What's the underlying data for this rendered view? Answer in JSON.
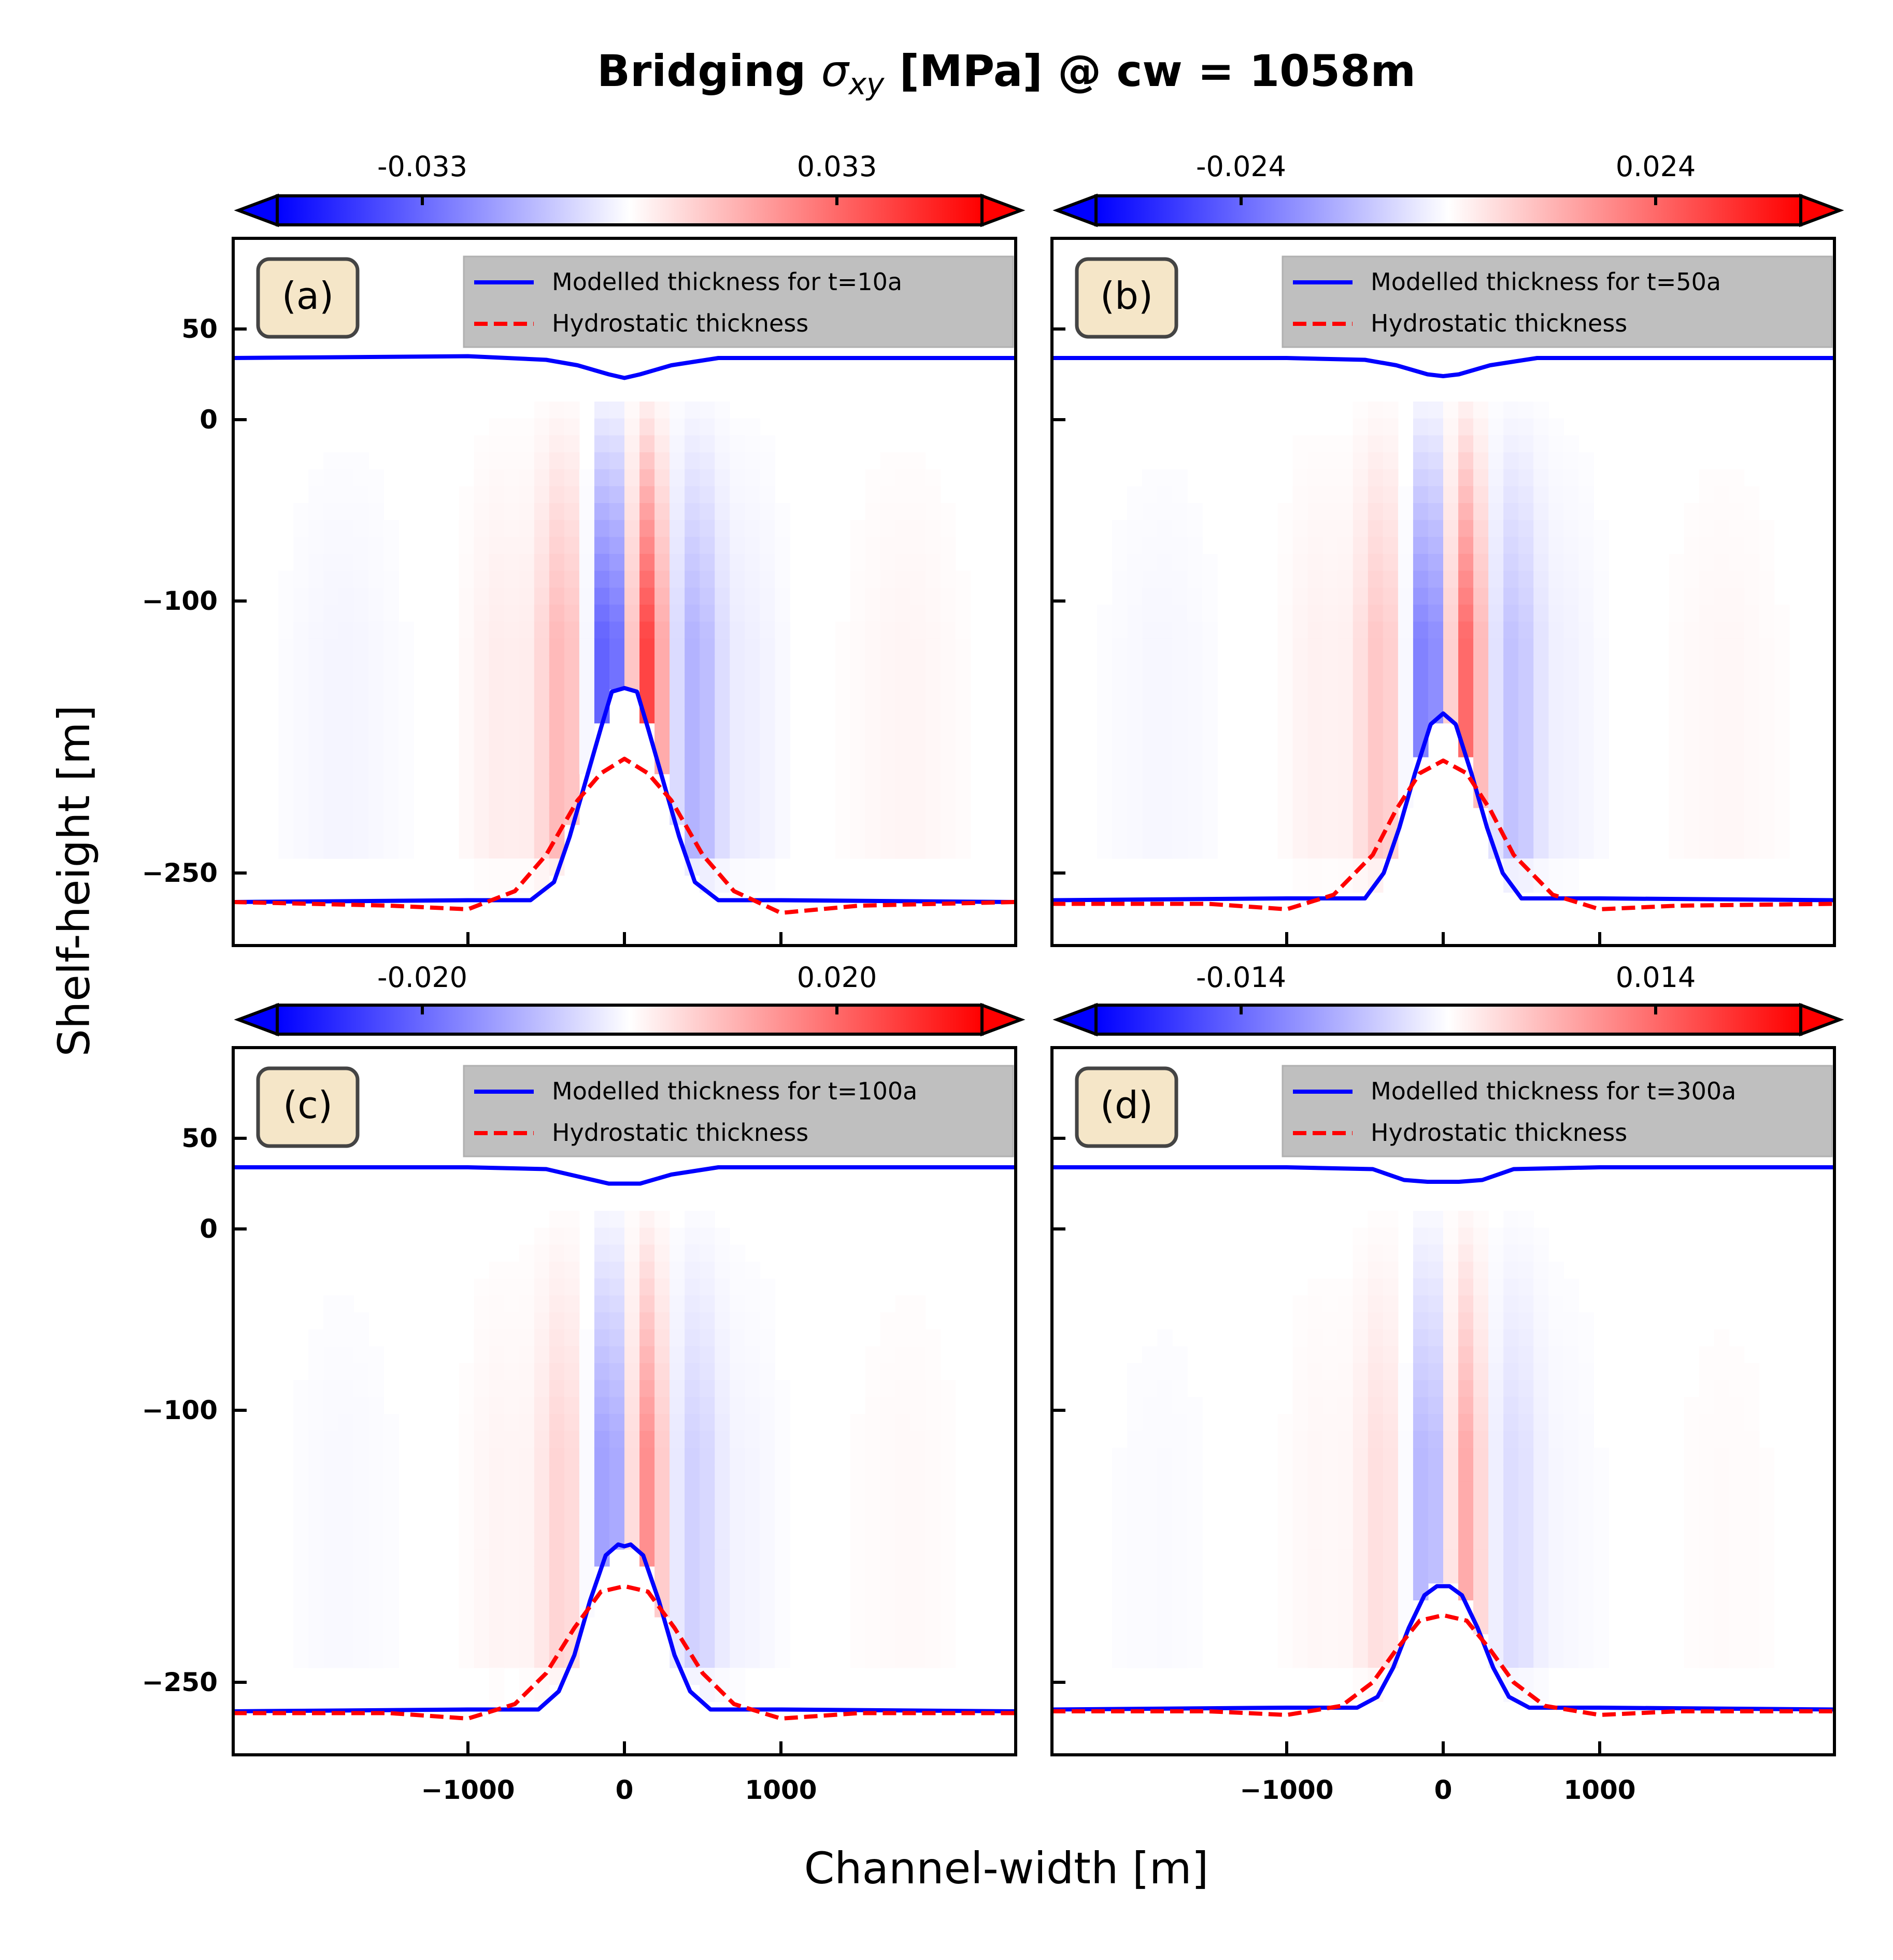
{
  "figure": {
    "title_prefix": "Bridging ",
    "title_symbol": "σ",
    "title_subscript": "xy",
    "title_unit": " [MPa]",
    "title_suffix": " @ cw = 1058m",
    "xlabel": "Channel-width [m]",
    "ylabel": "Shelf-height [m]"
  },
  "chart_data": [
    {
      "type": "heatmap",
      "panel_label": "(a)",
      "x_range": [
        -2500,
        2500
      ],
      "y_range": [
        -290,
        100
      ],
      "x_ticks": [
        -1000,
        0,
        1000
      ],
      "y_ticks": [
        50,
        0,
        -100,
        -250
      ],
      "colorbar": {
        "ticks": [
          -0.033,
          0.033
        ],
        "tick_labels": [
          "-0.033",
          "0.033"
        ],
        "colors": [
          "#0000ff",
          "#ffffff",
          "#ff0000"
        ]
      },
      "legend": [
        "Modelled thickness for t=10a",
        "Hydrostatic thickness"
      ],
      "field_amplitude": 1.0,
      "series": [
        {
          "name": "Modelled thickness for t=10a",
          "role": "top surface",
          "color": "#0000ff",
          "x": [
            -2500,
            -1000,
            -500,
            -300,
            -100,
            0,
            100,
            300,
            600,
            1000,
            2500
          ],
          "y": [
            34,
            35,
            33,
            30,
            25,
            23,
            25,
            30,
            34,
            34,
            34
          ]
        },
        {
          "name": "Modelled thickness for t=10a",
          "role": "bottom surface",
          "color": "#0000ff",
          "x": [
            -2500,
            -1000,
            -600,
            -450,
            -350,
            -250,
            -150,
            -80,
            0,
            80,
            150,
            250,
            350,
            450,
            600,
            1000,
            2500
          ],
          "y": [
            -266,
            -265,
            -265,
            -255,
            -230,
            -200,
            -170,
            -150,
            -148,
            -150,
            -170,
            -200,
            -230,
            -255,
            -265,
            -265,
            -266
          ]
        },
        {
          "name": "Hydrostatic thickness",
          "role": "bottom surface",
          "color": "#ff0000",
          "x": [
            -2500,
            -1500,
            -1000,
            -700,
            -500,
            -300,
            -150,
            0,
            150,
            300,
            500,
            700,
            1000,
            1500,
            2500
          ],
          "y": [
            -266,
            -268,
            -270,
            -260,
            -240,
            -210,
            -195,
            -187,
            -195,
            -210,
            -240,
            -260,
            -272,
            -268,
            -266
          ]
        }
      ]
    },
    {
      "type": "heatmap",
      "panel_label": "(b)",
      "x_range": [
        -2500,
        2500
      ],
      "y_range": [
        -290,
        100
      ],
      "x_ticks": [
        -1000,
        0,
        1000
      ],
      "y_ticks": [
        50,
        0,
        -100,
        -250
      ],
      "colorbar": {
        "ticks": [
          -0.024,
          0.024
        ],
        "tick_labels": [
          "-0.024",
          "0.024"
        ],
        "colors": [
          "#0000ff",
          "#ffffff",
          "#ff0000"
        ]
      },
      "legend": [
        "Modelled thickness for t=50a",
        "Hydrostatic thickness"
      ],
      "field_amplitude": 0.8,
      "series": [
        {
          "name": "Modelled thickness for t=50a",
          "role": "top surface",
          "color": "#0000ff",
          "x": [
            -2500,
            -1000,
            -500,
            -300,
            -100,
            0,
            100,
            300,
            600,
            1000,
            2500
          ],
          "y": [
            34,
            34,
            33,
            30,
            25,
            24,
            25,
            30,
            34,
            34,
            34
          ]
        },
        {
          "name": "Modelled thickness for t=50a",
          "role": "bottom surface",
          "color": "#0000ff",
          "x": [
            -2500,
            -1000,
            -500,
            -380,
            -280,
            -180,
            -80,
            0,
            80,
            180,
            280,
            380,
            500,
            1000,
            2500
          ],
          "y": [
            -265,
            -264,
            -264,
            -250,
            -225,
            -195,
            -168,
            -162,
            -168,
            -195,
            -225,
            -250,
            -264,
            -264,
            -265
          ]
        },
        {
          "name": "Hydrostatic thickness",
          "role": "bottom surface",
          "color": "#ff0000",
          "x": [
            -2500,
            -1500,
            -1000,
            -700,
            -450,
            -300,
            -150,
            0,
            150,
            300,
            450,
            700,
            1000,
            1500,
            2500
          ],
          "y": [
            -267,
            -267,
            -270,
            -262,
            -240,
            -215,
            -195,
            -188,
            -195,
            -215,
            -240,
            -262,
            -270,
            -268,
            -267
          ]
        }
      ]
    },
    {
      "type": "heatmap",
      "panel_label": "(c)",
      "x_range": [
        -2500,
        2500
      ],
      "y_range": [
        -290,
        100
      ],
      "x_ticks": [
        -1000,
        0,
        1000
      ],
      "y_ticks": [
        50,
        0,
        -100,
        -250
      ],
      "colorbar": {
        "ticks": [
          -0.02,
          0.02
        ],
        "tick_labels": [
          "-0.020",
          "0.020"
        ],
        "colors": [
          "#0000ff",
          "#ffffff",
          "#ff0000"
        ]
      },
      "legend": [
        "Modelled thickness for t=100a",
        "Hydrostatic thickness"
      ],
      "field_amplitude": 0.6,
      "series": [
        {
          "name": "Modelled thickness for t=100a",
          "role": "top surface",
          "color": "#0000ff",
          "x": [
            -2500,
            -1000,
            -500,
            -300,
            -100,
            0,
            100,
            300,
            600,
            1000,
            2500
          ],
          "y": [
            34,
            34,
            33,
            29,
            25,
            25,
            25,
            30,
            34,
            34,
            34
          ]
        },
        {
          "name": "Modelled thickness for t=100a",
          "role": "bottom surface",
          "color": "#0000ff",
          "x": [
            -2500,
            -1000,
            -550,
            -420,
            -320,
            -220,
            -120,
            -40,
            0,
            40,
            120,
            220,
            320,
            420,
            550,
            1000,
            2500
          ],
          "y": [
            -266,
            -265,
            -265,
            -255,
            -235,
            -205,
            -180,
            -174,
            -175,
            -174,
            -180,
            -205,
            -235,
            -255,
            -265,
            -265,
            -266
          ]
        },
        {
          "name": "Hydrostatic thickness",
          "role": "bottom surface",
          "color": "#ff0000",
          "x": [
            -2500,
            -1500,
            -1000,
            -700,
            -500,
            -320,
            -150,
            0,
            150,
            320,
            500,
            700,
            1000,
            1500,
            2500
          ],
          "y": [
            -267,
            -267,
            -270,
            -262,
            -245,
            -220,
            -200,
            -197,
            -200,
            -220,
            -245,
            -262,
            -270,
            -267,
            -267
          ]
        }
      ]
    },
    {
      "type": "heatmap",
      "panel_label": "(d)",
      "x_range": [
        -2500,
        2500
      ],
      "y_range": [
        -290,
        100
      ],
      "x_ticks": [
        -1000,
        0,
        1000
      ],
      "y_ticks": [
        50,
        0,
        -100,
        -250
      ],
      "colorbar": {
        "ticks": [
          -0.014,
          0.014
        ],
        "tick_labels": [
          "-0.014",
          "0.014"
        ],
        "colors": [
          "#0000ff",
          "#ffffff",
          "#ff0000"
        ]
      },
      "legend": [
        "Modelled thickness for t=300a",
        "Hydrostatic thickness"
      ],
      "field_amplitude": 0.45,
      "series": [
        {
          "name": "Modelled thickness for t=300a",
          "role": "top surface",
          "color": "#0000ff",
          "x": [
            -2500,
            -1000,
            -450,
            -250,
            -100,
            0,
            100,
            250,
            450,
            1000,
            2500
          ],
          "y": [
            34,
            34,
            33,
            27,
            26,
            26,
            26,
            27,
            33,
            34,
            34
          ]
        },
        {
          "name": "Modelled thickness for t=300a",
          "role": "bottom surface",
          "color": "#0000ff",
          "x": [
            -2500,
            -1000,
            -550,
            -420,
            -320,
            -220,
            -120,
            -40,
            0,
            40,
            120,
            220,
            320,
            420,
            550,
            1000,
            2500
          ],
          "y": [
            -265,
            -264,
            -264,
            -258,
            -242,
            -220,
            -202,
            -197,
            -197,
            -197,
            -202,
            -220,
            -242,
            -258,
            -264,
            -264,
            -265
          ]
        },
        {
          "name": "Hydrostatic thickness",
          "role": "bottom surface",
          "color": "#ff0000",
          "x": [
            -2500,
            -1500,
            -1000,
            -650,
            -450,
            -300,
            -150,
            0,
            150,
            300,
            450,
            650,
            1000,
            1500,
            2500
          ],
          "y": [
            -266,
            -266,
            -268,
            -263,
            -250,
            -232,
            -216,
            -213,
            -216,
            -232,
            -250,
            -263,
            -268,
            -266,
            -266
          ]
        }
      ]
    }
  ]
}
